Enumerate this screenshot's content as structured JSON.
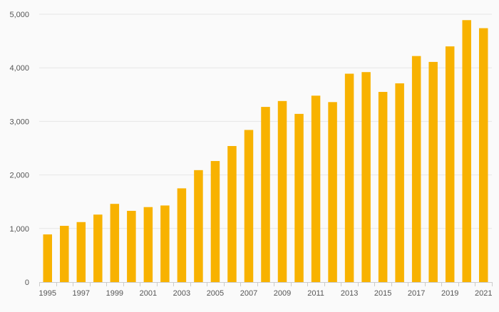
{
  "chart_data": {
    "type": "bar",
    "title": "",
    "xlabel": "",
    "ylabel": "",
    "ylim": [
      0,
      5000
    ],
    "yticks": [
      0,
      1000,
      2000,
      3000,
      4000,
      5000
    ],
    "ytick_labels": [
      "0",
      "1,000",
      "2,000",
      "3,000",
      "4,000",
      "5,000"
    ],
    "grid": true,
    "legend": "none",
    "bar_color": "#f8b200",
    "categories": [
      "1995",
      "1996",
      "1997",
      "1998",
      "1999",
      "2000",
      "2001",
      "2002",
      "2003",
      "2004",
      "2005",
      "2006",
      "2007",
      "2008",
      "2009",
      "2010",
      "2011",
      "2012",
      "2013",
      "2014",
      "2015",
      "2016",
      "2017",
      "2018",
      "2019",
      "2020",
      "2021"
    ],
    "x_tick_labels": [
      "1995",
      "1997",
      "1999",
      "2001",
      "2003",
      "2005",
      "2007",
      "2009",
      "2011",
      "2013",
      "2015",
      "2017",
      "2019",
      "2021"
    ],
    "values": [
      890,
      1050,
      1120,
      1260,
      1460,
      1330,
      1400,
      1430,
      1750,
      2090,
      2260,
      2540,
      2840,
      3270,
      3380,
      3140,
      3480,
      3360,
      3890,
      3920,
      3550,
      3710,
      4220,
      4110,
      4400,
      4890,
      4740
    ]
  }
}
